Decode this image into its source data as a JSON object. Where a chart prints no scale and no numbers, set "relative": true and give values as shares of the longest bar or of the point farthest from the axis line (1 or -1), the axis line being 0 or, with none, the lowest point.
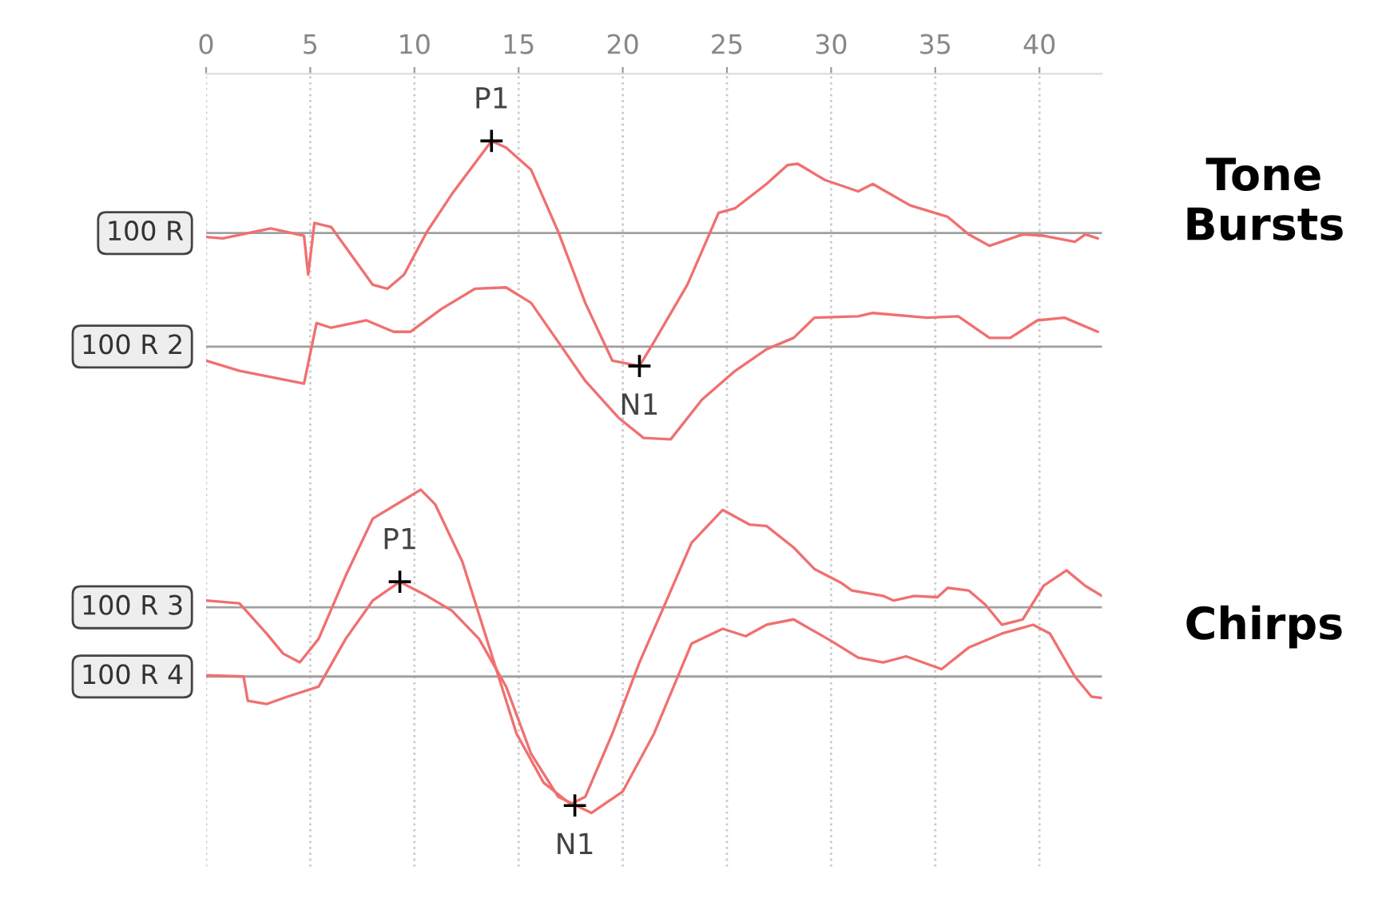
{
  "chart_data": {
    "type": "line",
    "relative": true,
    "xlim": [
      0,
      43
    ],
    "xticks": [
      0,
      5,
      10,
      15,
      20,
      25,
      30,
      35,
      40
    ],
    "grid": "x",
    "legend": false,
    "marker": "none",
    "line_style": "solid",
    "series": [
      {
        "color": "#f07070",
        "x": [
          0,
          0.8,
          3.1,
          4.7,
          4.9,
          5.2,
          6.0,
          7.0,
          8.0,
          8.7,
          9.5,
          10.6,
          11.8,
          13.7,
          14.4,
          15.6,
          16.9,
          18.2,
          19.5,
          20.8,
          21.5,
          23.1,
          24.6,
          25.4,
          26.9,
          27.9,
          28.4,
          29.7,
          31.3,
          32.0,
          33.8,
          35.6,
          36.6,
          37.6,
          39.2,
          40.2,
          41.7,
          42.2,
          42.8
        ],
        "values": [
          0.857,
          0.855,
          0.87,
          0.859,
          0.801,
          0.878,
          0.872,
          0.829,
          0.786,
          0.78,
          0.801,
          0.865,
          0.921,
          1,
          0.99,
          0.957,
          0.865,
          0.759,
          0.673,
          0.665,
          0.701,
          0.786,
          0.893,
          0.9,
          0.936,
          0.964,
          0.966,
          0.942,
          0.925,
          0.936,
          0.904,
          0.887,
          0.861,
          0.844,
          0.861,
          0.859,
          0.85,
          0.861,
          0.855
        ]
      },
      {
        "color": "#f07070",
        "x": [
          0,
          1.6,
          4.7,
          5.3,
          6.0,
          7.7,
          9.0,
          9.8,
          11.3,
          12.9,
          14.4,
          15.6,
          16.9,
          18.2,
          19.8,
          21.0,
          22.3,
          23.8,
          25.4,
          26.9,
          28.2,
          29.2,
          31.3,
          32.0,
          34.6,
          36.1,
          37.6,
          38.6,
          39.9,
          41.2,
          42.8
        ],
        "values": [
          0.673,
          0.658,
          0.639,
          0.729,
          0.722,
          0.733,
          0.716,
          0.716,
          0.75,
          0.78,
          0.782,
          0.759,
          0.701,
          0.643,
          0.588,
          0.558,
          0.556,
          0.615,
          0.658,
          0.69,
          0.707,
          0.737,
          0.739,
          0.744,
          0.737,
          0.739,
          0.707,
          0.707,
          0.733,
          0.737,
          0.716
        ]
      },
      {
        "color": "#f07070",
        "x": [
          0,
          1.6,
          2.9,
          3.7,
          4.5,
          5.4,
          6.7,
          8.0,
          9.5,
          10.3,
          11.0,
          12.3,
          13.6,
          14.9,
          16.2,
          17.5,
          18.2,
          19.5,
          20.8,
          22.1,
          23.3,
          24.8,
          26.1,
          26.9,
          28.2,
          29.2,
          30.5,
          31.0,
          32.5,
          33.0,
          34.0,
          35.1,
          35.6,
          36.6,
          37.4,
          38.2,
          39.2,
          40.2,
          41.3,
          42.2,
          43.0
        ],
        "values": [
          0.316,
          0.312,
          0.267,
          0.237,
          0.224,
          0.259,
          0.353,
          0.438,
          0.466,
          0.481,
          0.459,
          0.374,
          0.246,
          0.118,
          0.045,
          0.013,
          0.024,
          0.118,
          0.224,
          0.316,
          0.402,
          0.451,
          0.429,
          0.427,
          0.395,
          0.363,
          0.342,
          0.331,
          0.323,
          0.316,
          0.323,
          0.321,
          0.335,
          0.331,
          0.31,
          0.28,
          0.288,
          0.338,
          0.361,
          0.338,
          0.323
        ]
      },
      {
        "color": "#f07070",
        "x": [
          0,
          1.8,
          2.0,
          2.9,
          3.9,
          5.4,
          6.7,
          8.0,
          9.3,
          10.6,
          11.8,
          13.1,
          14.4,
          15.6,
          16.9,
          18.5,
          20.0,
          21.5,
          23.3,
          24.8,
          25.9,
          26.9,
          28.2,
          30.0,
          31.3,
          32.5,
          33.6,
          35.3,
          36.6,
          38.2,
          39.7,
          40.5,
          41.7,
          42.5,
          43.0
        ],
        "values": [
          0.205,
          0.203,
          0.167,
          0.162,
          0.173,
          0.188,
          0.259,
          0.316,
          0.344,
          0.323,
          0.301,
          0.259,
          0.188,
          0.088,
          0.024,
          0,
          0.032,
          0.118,
          0.252,
          0.274,
          0.263,
          0.28,
          0.288,
          0.256,
          0.231,
          0.224,
          0.233,
          0.214,
          0.246,
          0.267,
          0.28,
          0.267,
          0.203,
          0.173,
          0.171
        ]
      }
    ],
    "ref_lines": [
      {
        "axis": "y",
        "value": 0.863,
        "label": "100 R",
        "color": "#a0a0a0"
      },
      {
        "axis": "y",
        "value": 0.694,
        "label": "100 R 2",
        "color": "#a0a0a0"
      },
      {
        "axis": "y",
        "value": 0.306,
        "label": "100 R 3",
        "color": "#a0a0a0"
      },
      {
        "axis": "y",
        "value": 0.203,
        "label": "100 R 4",
        "color": "#a0a0a0"
      }
    ],
    "annotations": [
      {
        "text": "P1",
        "x": 13.7,
        "y": 1
      },
      {
        "text": "N1",
        "x": 20.8,
        "y": 0.665
      },
      {
        "text": "P1",
        "x": 9.3,
        "y": 0.344
      },
      {
        "text": "N1",
        "x": 17.7,
        "y": 0.011
      },
      "Tone\nBursts",
      "Chirps"
    ]
  }
}
